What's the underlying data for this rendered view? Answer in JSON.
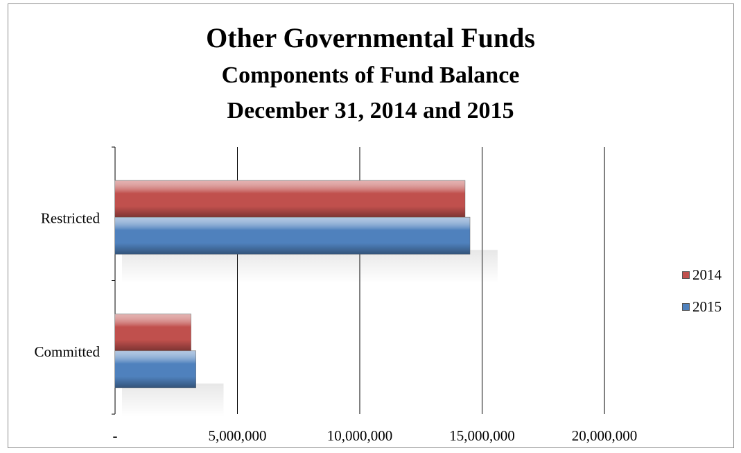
{
  "title": "Other Governmental Funds",
  "subtitle_line1": "Components of Fund Balance",
  "subtitle_line2": "December 31, 2014 and 2015",
  "colors": {
    "series_2014": "#c0504d",
    "series_2015": "#4f81bd",
    "gridline": "#000000"
  },
  "chart_data": {
    "type": "bar",
    "orientation": "horizontal",
    "title": "Other Governmental Funds",
    "subtitle": "Components of Fund Balance December 31, 2014 and 2015",
    "categories": [
      "Restricted",
      "Committed"
    ],
    "series": [
      {
        "name": "2014",
        "values": [
          14300000,
          3100000
        ]
      },
      {
        "name": "2015",
        "values": [
          14500000,
          3300000
        ]
      }
    ],
    "x_tick_labels": [
      "-",
      "5,000,000",
      "10,000,000",
      "15,000,000",
      "20,000,000"
    ],
    "xlim": [
      0,
      20000000
    ],
    "grid": true,
    "legend_position": "right"
  }
}
